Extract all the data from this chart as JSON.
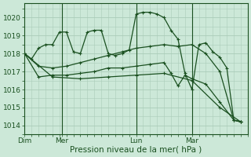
{
  "bg_color": "#cce8d8",
  "grid_color": "#aaccb8",
  "line_color": "#1a5020",
  "title": "Pression niveau de la mer( hPa )",
  "ylim": [
    1013.5,
    1020.8
  ],
  "yticks": [
    1014,
    1015,
    1016,
    1017,
    1018,
    1019,
    1020
  ],
  "xlim": [
    0,
    96
  ],
  "day_positions": [
    0,
    16,
    48,
    72
  ],
  "day_labels": [
    "Dim",
    "Mer",
    "Lun",
    "Mar"
  ],
  "vlines": [
    16,
    48,
    72
  ],
  "s1_x": [
    0,
    3,
    6,
    9,
    12,
    15,
    18,
    21,
    24,
    27,
    30,
    33,
    36,
    39,
    42,
    45,
    48,
    51,
    54,
    57,
    60,
    63,
    66,
    69,
    72,
    75,
    78,
    81,
    84,
    87,
    90,
    93
  ],
  "s1_y": [
    1018.0,
    1017.7,
    1018.3,
    1018.5,
    1018.5,
    1019.2,
    1019.2,
    1018.1,
    1018.0,
    1019.2,
    1019.3,
    1019.3,
    1018.0,
    1017.9,
    1018.0,
    1018.2,
    1020.2,
    1020.3,
    1020.3,
    1020.2,
    1020.0,
    1019.3,
    1018.8,
    1016.9,
    1016.0,
    1018.5,
    1018.6,
    1018.1,
    1017.8,
    1017.2,
    1014.3,
    1014.2
  ],
  "s2_x": [
    0,
    6,
    12,
    18,
    24,
    30,
    36,
    42,
    48,
    54,
    60,
    66,
    72,
    78,
    84,
    90,
    93
  ],
  "s2_y": [
    1018.0,
    1017.3,
    1017.2,
    1017.3,
    1017.5,
    1017.7,
    1017.9,
    1018.1,
    1018.3,
    1018.4,
    1018.5,
    1018.4,
    1018.5,
    1018.0,
    1017.0,
    1014.3,
    1014.2
  ],
  "s3_x": [
    0,
    6,
    12,
    18,
    24,
    30,
    36,
    42,
    48,
    54,
    60,
    63,
    66,
    69,
    72,
    78,
    84,
    90,
    93
  ],
  "s3_y": [
    1018.0,
    1016.7,
    1016.8,
    1016.8,
    1016.9,
    1017.0,
    1017.2,
    1017.2,
    1017.3,
    1017.4,
    1017.5,
    1016.9,
    1016.2,
    1016.8,
    1016.6,
    1016.3,
    1015.3,
    1014.3,
    1014.2
  ],
  "s4_x": [
    0,
    12,
    24,
    36,
    48,
    60,
    72,
    84,
    93
  ],
  "s4_y": [
    1018.0,
    1016.7,
    1016.6,
    1016.7,
    1016.8,
    1016.9,
    1016.5,
    1015.0,
    1014.2
  ]
}
